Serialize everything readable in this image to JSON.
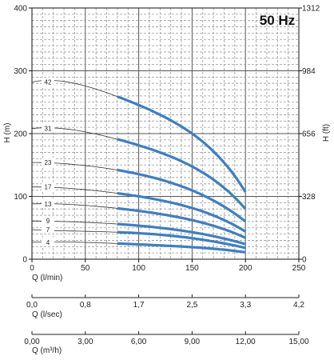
{
  "chart_data": {
    "type": "line",
    "frequency_label": "50 Hz",
    "xlabel": "Q (l/min)",
    "ylabel_left": "H (m)",
    "ylabel_right": "H (ft)",
    "xlim": [
      0,
      250
    ],
    "ylim": [
      0,
      400
    ],
    "x_ticks": [
      "0",
      "50",
      "100",
      "150",
      "200",
      "250"
    ],
    "y_ticks_left": [
      "0",
      "100",
      "200",
      "300",
      "400"
    ],
    "y_ticks_right": [
      "0",
      "328",
      "656",
      "984",
      "1312"
    ],
    "grid": true,
    "operating_range": [
      80,
      200
    ],
    "series": [
      {
        "name": "42",
        "shutoff": 282,
        "values": [
          [
            80,
            259
          ],
          [
            120,
            230
          ],
          [
            160,
            187
          ],
          [
            200,
            107
          ]
        ]
      },
      {
        "name": "31",
        "shutoff": 208,
        "values": [
          [
            80,
            191
          ],
          [
            120,
            170
          ],
          [
            160,
            138
          ],
          [
            200,
            80
          ]
        ]
      },
      {
        "name": "23",
        "shutoff": 154,
        "values": [
          [
            80,
            142
          ],
          [
            120,
            127
          ],
          [
            160,
            102
          ],
          [
            200,
            60
          ]
        ]
      },
      {
        "name": "17",
        "shutoff": 115,
        "values": [
          [
            80,
            105
          ],
          [
            120,
            94
          ],
          [
            160,
            76
          ],
          [
            200,
            44
          ]
        ]
      },
      {
        "name": "13",
        "shutoff": 88,
        "values": [
          [
            80,
            81
          ],
          [
            120,
            72
          ],
          [
            160,
            58
          ],
          [
            200,
            34
          ]
        ]
      },
      {
        "name": "9",
        "shutoff": 61,
        "values": [
          [
            80,
            56
          ],
          [
            120,
            50
          ],
          [
            160,
            40
          ],
          [
            200,
            24
          ]
        ]
      },
      {
        "name": "7",
        "shutoff": 47,
        "values": [
          [
            80,
            43
          ],
          [
            120,
            39
          ],
          [
            160,
            31
          ],
          [
            200,
            18
          ]
        ]
      },
      {
        "name": "4",
        "shutoff": 27,
        "values": [
          [
            80,
            25
          ],
          [
            120,
            22
          ],
          [
            160,
            18
          ],
          [
            200,
            11
          ]
        ]
      }
    ],
    "secondary_axes": [
      {
        "label": "Q (l/sec)",
        "ticks": [
          "0,0",
          "0,8",
          "1,7",
          "2,5",
          "3,3",
          "4,2"
        ]
      },
      {
        "label": "Q (m³/h)",
        "ticks": [
          "0,00",
          "3,00",
          "6,00",
          "9,00",
          "12,00",
          "15,00"
        ]
      }
    ],
    "colors": {
      "curve": "#3f7fbf",
      "thin": "#333333",
      "grid_major": "#555555",
      "grid_minor": "#9a9a9a"
    }
  }
}
